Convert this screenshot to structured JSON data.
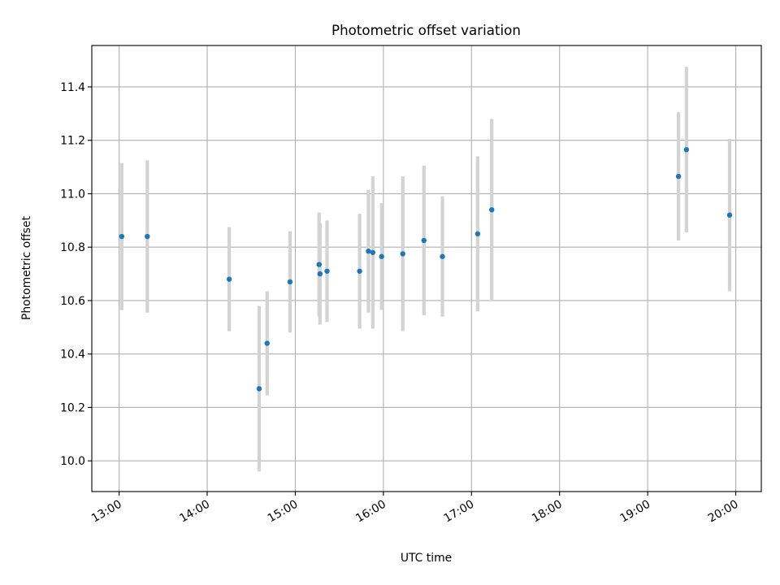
{
  "chart_data": {
    "type": "scatter",
    "title": "Photometric offset variation",
    "xlabel": "UTC time",
    "ylabel": "Photometric offset",
    "x_unit": "hours UTC",
    "xlim": [
      12.69,
      20.29
    ],
    "ylim": [
      9.885,
      11.555
    ],
    "x_ticks": [
      {
        "value": 13,
        "label": "13:00"
      },
      {
        "value": 14,
        "label": "14:00"
      },
      {
        "value": 15,
        "label": "15:00"
      },
      {
        "value": 16,
        "label": "16:00"
      },
      {
        "value": 17,
        "label": "17:00"
      },
      {
        "value": 18,
        "label": "18:00"
      },
      {
        "value": 19,
        "label": "19:00"
      },
      {
        "value": 20,
        "label": "20:00"
      }
    ],
    "y_ticks": [
      {
        "value": 10.0,
        "label": "10.0"
      },
      {
        "value": 10.2,
        "label": "10.2"
      },
      {
        "value": 10.4,
        "label": "10.4"
      },
      {
        "value": 10.6,
        "label": "10.6"
      },
      {
        "value": 10.8,
        "label": "10.8"
      },
      {
        "value": 11.0,
        "label": "11.0"
      },
      {
        "value": 11.2,
        "label": "11.2"
      },
      {
        "value": 11.4,
        "label": "11.4"
      }
    ],
    "grid": true,
    "colors": {
      "point": "#1f77b4",
      "error_bar": "#d3d3d3",
      "grid": "#b0b0b0"
    },
    "points": [
      {
        "x": 13.03,
        "y": 10.84,
        "err": 0.275
      },
      {
        "x": 13.32,
        "y": 10.84,
        "err": 0.285
      },
      {
        "x": 14.25,
        "y": 10.68,
        "err": 0.195
      },
      {
        "x": 14.59,
        "y": 10.27,
        "err": 0.31
      },
      {
        "x": 14.68,
        "y": 10.44,
        "err": 0.195
      },
      {
        "x": 14.94,
        "y": 10.67,
        "err": 0.19
      },
      {
        "x": 15.27,
        "y": 10.735,
        "err": 0.195
      },
      {
        "x": 15.28,
        "y": 10.7,
        "err": 0.19
      },
      {
        "x": 15.36,
        "y": 10.71,
        "err": 0.19
      },
      {
        "x": 15.73,
        "y": 10.71,
        "err": 0.215
      },
      {
        "x": 15.83,
        "y": 10.785,
        "err": 0.23
      },
      {
        "x": 15.88,
        "y": 10.78,
        "err": 0.285
      },
      {
        "x": 15.98,
        "y": 10.765,
        "err": 0.2
      },
      {
        "x": 16.22,
        "y": 10.775,
        "err": 0.29
      },
      {
        "x": 16.46,
        "y": 10.825,
        "err": 0.28
      },
      {
        "x": 16.67,
        "y": 10.765,
        "err": 0.225
      },
      {
        "x": 17.07,
        "y": 10.85,
        "err": 0.29
      },
      {
        "x": 17.23,
        "y": 10.94,
        "err": 0.34
      },
      {
        "x": 19.35,
        "y": 11.065,
        "err": 0.24
      },
      {
        "x": 19.44,
        "y": 11.165,
        "err": 0.31
      },
      {
        "x": 19.93,
        "y": 10.92,
        "err": 0.285
      }
    ]
  }
}
